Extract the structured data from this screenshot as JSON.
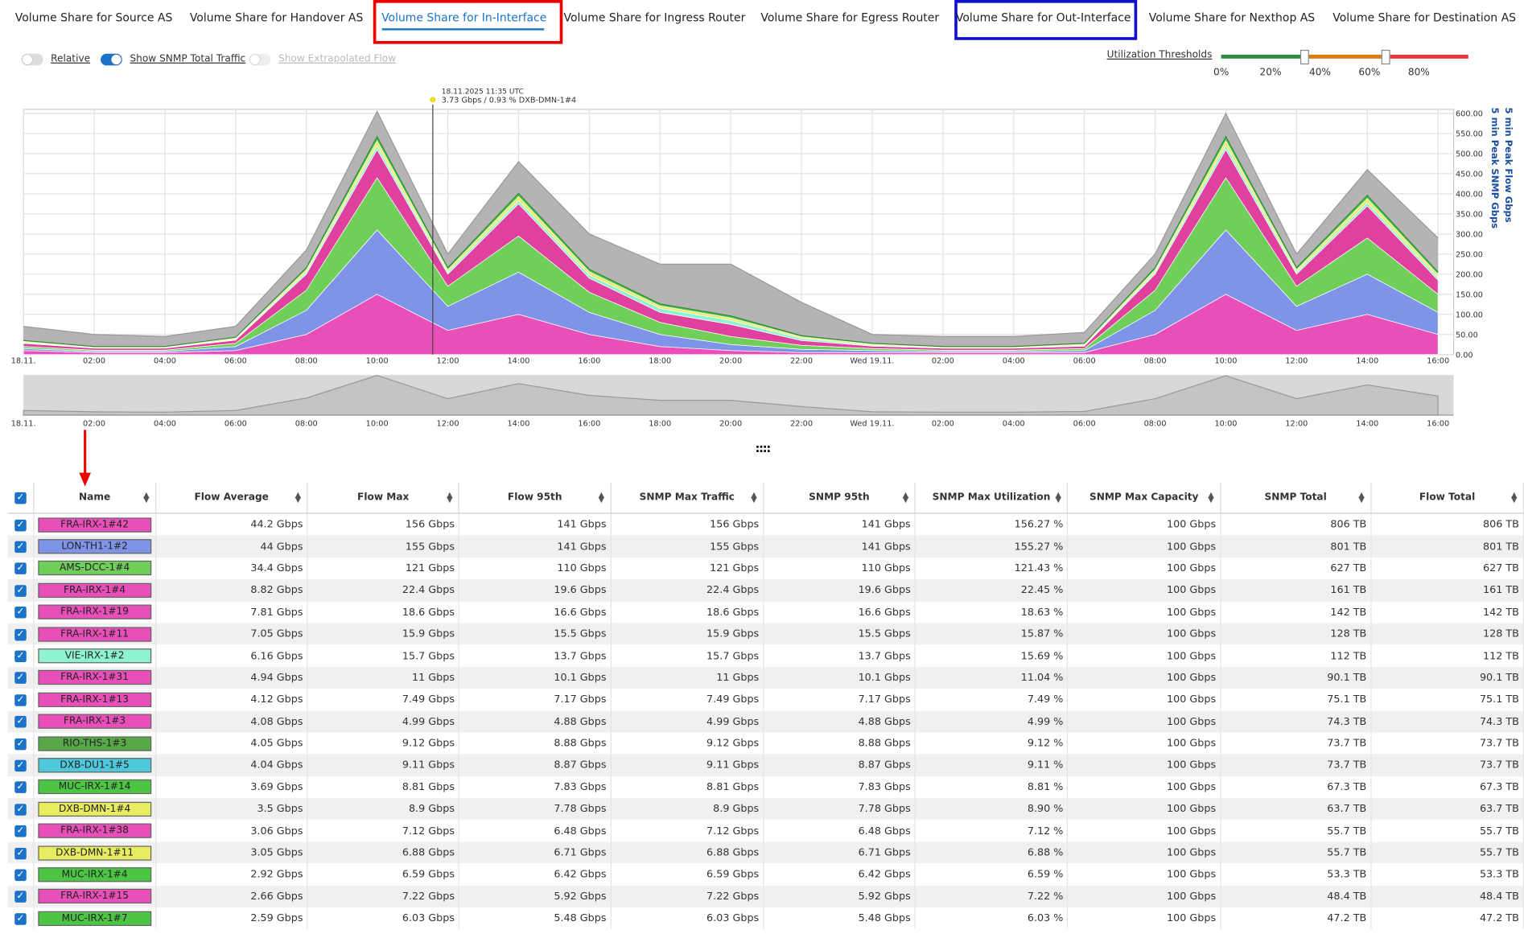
{
  "tabs": [
    "Volume Share for Source AS",
    "Volume Share for Handover AS",
    "Volume Share for In-Interface",
    "Volume Share for Ingress Router",
    "Volume Share for Egress Router",
    "Volume Share for Out-Interface",
    "Volume Share for Nexthop AS",
    "Volume Share for Destination AS"
  ],
  "toggles": [
    {
      "label": "Relative",
      "on": false
    },
    {
      "label": "Show SNMP Total Traffic",
      "on": true
    },
    {
      "label": "Show Extrapolated Flow",
      "on": false
    }
  ],
  "thresholds": {
    "title": "Utilization Thresholds",
    "labels": [
      "0%",
      "20%",
      "40%",
      "60%",
      "80%"
    ]
  },
  "chart_data": {
    "type": "area",
    "y_axis_labels": [
      "5 min Peak Flow Gbps",
      "5 min Peak SNMP Gbps"
    ],
    "annotation": {
      "time": "18.11.2025 11:35 UTC",
      "text": "3.73 Gbps / 0.93 % DXB-DMN-1#4"
    },
    "categories": [
      "18.11.",
      "02:00",
      "04:00",
      "06:00",
      "08:00",
      "10:00",
      "12:00",
      "14:00",
      "16:00",
      "18:00",
      "20:00",
      "22:00",
      "Wed 19.11.",
      "02:00",
      "04:00",
      "06:00",
      "08:00",
      "10:00",
      "12:00",
      "14:00",
      "16:00"
    ],
    "ylim": [
      0,
      610
    ],
    "yticks": [
      {
        "value": 0,
        "label": "0.00"
      },
      {
        "value": 50,
        "label": "50.00"
      },
      {
        "value": 100,
        "label": "100.00"
      },
      {
        "value": 150,
        "label": "150.00"
      },
      {
        "value": 200,
        "label": "200.00"
      },
      {
        "value": 250,
        "label": "250.00"
      },
      {
        "value": 300,
        "label": "300.00"
      },
      {
        "value": 350,
        "label": "350.00"
      },
      {
        "value": 400,
        "label": "400.00"
      },
      {
        "value": 450,
        "label": "450.00"
      },
      {
        "value": 500,
        "label": "500.00"
      },
      {
        "value": 550,
        "label": "550.00"
      },
      {
        "value": 600,
        "label": "600.00"
      }
    ],
    "grid": true,
    "total": {
      "name": "SNMP Total",
      "color": "#b5b3b3",
      "values": [
        70,
        50,
        45,
        70,
        260,
        605,
        250,
        480,
        300,
        225,
        225,
        130,
        50,
        45,
        45,
        55,
        250,
        600,
        250,
        460,
        290
      ]
    },
    "series": [
      {
        "color": "#e94fb8",
        "values": [
          10,
          5,
          5,
          10,
          50,
          150,
          60,
          100,
          50,
          20,
          10,
          5,
          5,
          5,
          5,
          5,
          50,
          150,
          60,
          100,
          50
        ]
      },
      {
        "color": "#7f94e8",
        "values": [
          5,
          3,
          3,
          10,
          60,
          160,
          60,
          105,
          55,
          30,
          15,
          8,
          5,
          3,
          3,
          5,
          60,
          160,
          60,
          100,
          55
        ]
      },
      {
        "color": "#6fcf5a",
        "values": [
          5,
          3,
          3,
          8,
          50,
          130,
          50,
          90,
          50,
          30,
          20,
          10,
          5,
          3,
          3,
          5,
          50,
          130,
          50,
          90,
          45
        ]
      },
      {
        "color": "#e0409e",
        "values": [
          8,
          5,
          5,
          8,
          40,
          70,
          30,
          80,
          35,
          25,
          30,
          12,
          6,
          5,
          5,
          6,
          40,
          70,
          30,
          80,
          35
        ]
      },
      {
        "color": "#8ff2d2",
        "values": [
          2,
          1,
          1,
          2,
          5,
          10,
          5,
          8,
          8,
          10,
          10,
          5,
          2,
          1,
          1,
          2,
          5,
          10,
          5,
          8,
          6
        ]
      },
      {
        "color": "#e8ec60",
        "values": [
          3,
          2,
          2,
          3,
          6,
          12,
          6,
          10,
          8,
          6,
          6,
          4,
          3,
          2,
          2,
          3,
          6,
          12,
          6,
          10,
          8
        ]
      },
      {
        "color": "#4cc545",
        "values": [
          2,
          1,
          1,
          2,
          5,
          10,
          5,
          8,
          6,
          5,
          5,
          3,
          2,
          1,
          1,
          2,
          5,
          10,
          5,
          8,
          6
        ]
      }
    ]
  },
  "table": {
    "header": [
      "Name",
      "Flow Average",
      "Flow Max",
      "Flow 95th",
      "SNMP Max Traffic",
      "SNMP 95th",
      "SNMP Max Utilization",
      "SNMP Max Capacity",
      "SNMP Total",
      "Flow Total"
    ],
    "rows": [
      {
        "name": "FRA-IRX-1#42",
        "color": "#e94fb8",
        "cells": [
          "44.2 Gbps",
          "156 Gbps",
          "141 Gbps",
          "156 Gbps",
          "141 Gbps",
          "156.27 %",
          "100 Gbps",
          "806 TB",
          "806 TB"
        ]
      },
      {
        "name": "LON-TH1-1#2",
        "color": "#7f94e8",
        "cells": [
          "44 Gbps",
          "155 Gbps",
          "141 Gbps",
          "155 Gbps",
          "141 Gbps",
          "155.27 %",
          "100 Gbps",
          "801 TB",
          "801 TB"
        ]
      },
      {
        "name": "AMS-DCC-1#4",
        "color": "#6fcf5a",
        "cells": [
          "34.4 Gbps",
          "121 Gbps",
          "110 Gbps",
          "121 Gbps",
          "110 Gbps",
          "121.43 %",
          "100 Gbps",
          "627 TB",
          "627 TB"
        ]
      },
      {
        "name": "FRA-IRX-1#4",
        "color": "#e94fb8",
        "cells": [
          "8.82 Gbps",
          "22.4 Gbps",
          "19.6 Gbps",
          "22.4 Gbps",
          "19.6 Gbps",
          "22.45 %",
          "100 Gbps",
          "161 TB",
          "161 TB"
        ]
      },
      {
        "name": "FRA-IRX-1#19",
        "color": "#e94fb8",
        "cells": [
          "7.81 Gbps",
          "18.6 Gbps",
          "16.6 Gbps",
          "18.6 Gbps",
          "16.6 Gbps",
          "18.63 %",
          "100 Gbps",
          "142 TB",
          "142 TB"
        ]
      },
      {
        "name": "FRA-IRX-1#11",
        "color": "#e94fb8",
        "cells": [
          "7.05 Gbps",
          "15.9 Gbps",
          "15.5 Gbps",
          "15.9 Gbps",
          "15.5 Gbps",
          "15.87 %",
          "100 Gbps",
          "128 TB",
          "128 TB"
        ]
      },
      {
        "name": "VIE-IRX-1#2",
        "color": "#8ff2d2",
        "cells": [
          "6.16 Gbps",
          "15.7 Gbps",
          "13.7 Gbps",
          "15.7 Gbps",
          "13.7 Gbps",
          "15.69 %",
          "100 Gbps",
          "112 TB",
          "112 TB"
        ]
      },
      {
        "name": "FRA-IRX-1#31",
        "color": "#e94fb8",
        "cells": [
          "4.94 Gbps",
          "11 Gbps",
          "10.1 Gbps",
          "11 Gbps",
          "10.1 Gbps",
          "11.04 %",
          "100 Gbps",
          "90.1 TB",
          "90.1 TB"
        ]
      },
      {
        "name": "FRA-IRX-1#13",
        "color": "#e94fb8",
        "cells": [
          "4.12 Gbps",
          "7.49 Gbps",
          "7.17 Gbps",
          "7.49 Gbps",
          "7.17 Gbps",
          "7.49 %",
          "100 Gbps",
          "75.1 TB",
          "75.1 TB"
        ]
      },
      {
        "name": "FRA-IRX-1#3",
        "color": "#e94fb8",
        "cells": [
          "4.08 Gbps",
          "4.99 Gbps",
          "4.88 Gbps",
          "4.99 Gbps",
          "4.88 Gbps",
          "4.99 %",
          "100 Gbps",
          "74.3 TB",
          "74.3 TB"
        ]
      },
      {
        "name": "RIO-THS-1#3",
        "color": "#58a84a",
        "cells": [
          "4.05 Gbps",
          "9.12 Gbps",
          "8.88 Gbps",
          "9.12 Gbps",
          "8.88 Gbps",
          "9.12 %",
          "100 Gbps",
          "73.7 TB",
          "73.7 TB"
        ]
      },
      {
        "name": "DXB-DU1-1#5",
        "color": "#4fc8dc",
        "cells": [
          "4.04 Gbps",
          "9.11 Gbps",
          "8.87 Gbps",
          "9.11 Gbps",
          "8.87 Gbps",
          "9.11 %",
          "100 Gbps",
          "73.7 TB",
          "73.7 TB"
        ]
      },
      {
        "name": "MUC-IRX-1#14",
        "color": "#4cc545",
        "cells": [
          "3.69 Gbps",
          "8.81 Gbps",
          "7.83 Gbps",
          "8.81 Gbps",
          "7.83 Gbps",
          "8.81 %",
          "100 Gbps",
          "67.3 TB",
          "67.3 TB"
        ]
      },
      {
        "name": "DXB-DMN-1#4",
        "color": "#e8ec60",
        "cells": [
          "3.5 Gbps",
          "8.9 Gbps",
          "7.78 Gbps",
          "8.9 Gbps",
          "7.78 Gbps",
          "8.90 %",
          "100 Gbps",
          "63.7 TB",
          "63.7 TB"
        ]
      },
      {
        "name": "FRA-IRX-1#38",
        "color": "#e94fb8",
        "cells": [
          "3.06 Gbps",
          "7.12 Gbps",
          "6.48 Gbps",
          "7.12 Gbps",
          "6.48 Gbps",
          "7.12 %",
          "100 Gbps",
          "55.7 TB",
          "55.7 TB"
        ]
      },
      {
        "name": "DXB-DMN-1#11",
        "color": "#e8ec60",
        "cells": [
          "3.05 Gbps",
          "6.88 Gbps",
          "6.71 Gbps",
          "6.88 Gbps",
          "6.71 Gbps",
          "6.88 %",
          "100 Gbps",
          "55.7 TB",
          "55.7 TB"
        ]
      },
      {
        "name": "MUC-IRX-1#4",
        "color": "#4cc545",
        "cells": [
          "2.92 Gbps",
          "6.59 Gbps",
          "6.42 Gbps",
          "6.59 Gbps",
          "6.42 Gbps",
          "6.59 %",
          "100 Gbps",
          "53.3 TB",
          "53.3 TB"
        ]
      },
      {
        "name": "FRA-IRX-1#15",
        "color": "#e94fb8",
        "cells": [
          "2.66 Gbps",
          "7.22 Gbps",
          "5.92 Gbps",
          "7.22 Gbps",
          "5.92 Gbps",
          "7.22 %",
          "100 Gbps",
          "48.4 TB",
          "48.4 TB"
        ]
      },
      {
        "name": "MUC-IRX-1#7",
        "color": "#4cc545",
        "cells": [
          "2.59 Gbps",
          "6.03 Gbps",
          "5.48 Gbps",
          "6.03 Gbps",
          "5.48 Gbps",
          "6.03 %",
          "100 Gbps",
          "47.2 TB",
          "47.2 TB"
        ]
      }
    ]
  }
}
